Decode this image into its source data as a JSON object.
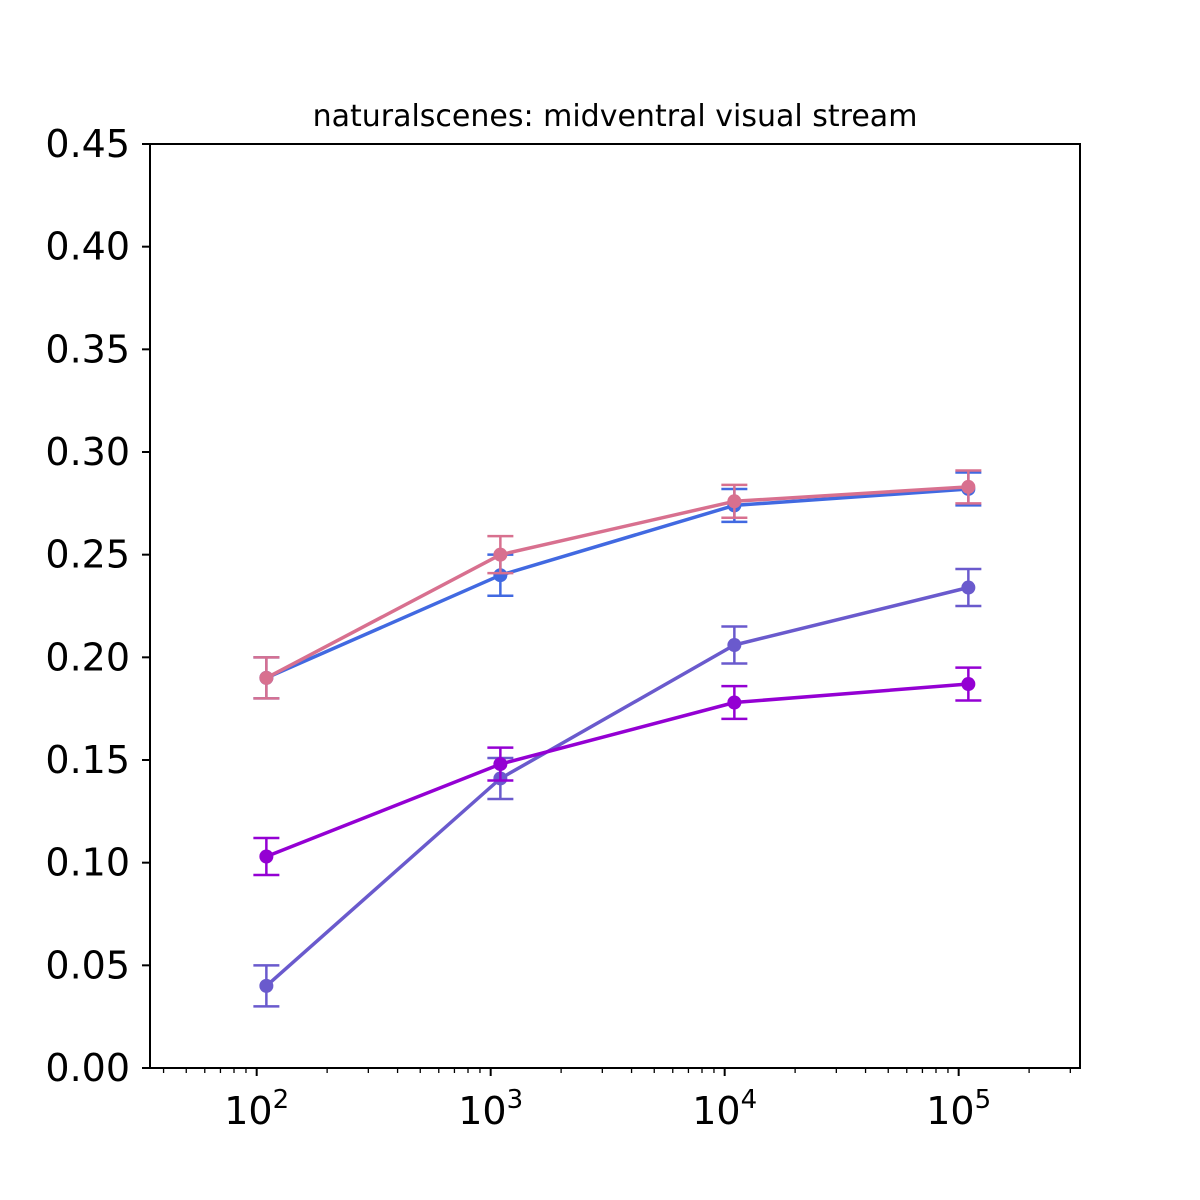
{
  "chart_data": {
    "type": "line",
    "title": "naturalscenes: midventral visual stream",
    "xlabel": "",
    "ylabel": "",
    "xscale": "log",
    "xlim": [
      35,
      330000
    ],
    "ylim": [
      0,
      0.45
    ],
    "grid": false,
    "legend": "none",
    "x_ticks": [
      {
        "value": 100,
        "base": "10",
        "exp": "2"
      },
      {
        "value": 1000,
        "base": "10",
        "exp": "3"
      },
      {
        "value": 10000,
        "base": "10",
        "exp": "4"
      },
      {
        "value": 100000,
        "base": "10",
        "exp": "5"
      }
    ],
    "y_ticks": [
      {
        "value": 0.0,
        "label": "0.00"
      },
      {
        "value": 0.05,
        "label": "0.05"
      },
      {
        "value": 0.1,
        "label": "0.10"
      },
      {
        "value": 0.15,
        "label": "0.15"
      },
      {
        "value": 0.2,
        "label": "0.20"
      },
      {
        "value": 0.25,
        "label": "0.25"
      },
      {
        "value": 0.3,
        "label": "0.30"
      },
      {
        "value": 0.35,
        "label": "0.35"
      },
      {
        "value": 0.4,
        "label": "0.40"
      },
      {
        "value": 0.45,
        "label": "0.45"
      }
    ],
    "x": [
      110,
      1100,
      11000,
      110000
    ],
    "series": [
      {
        "color": "#4169e1",
        "values": [
          0.19,
          0.24,
          0.274,
          0.282
        ],
        "err": [
          0.01,
          0.01,
          0.008,
          0.008
        ]
      },
      {
        "color": "#d8708f",
        "values": [
          0.19,
          0.25,
          0.276,
          0.283
        ],
        "err": [
          0.01,
          0.009,
          0.008,
          0.008
        ]
      },
      {
        "color": "#6a5acd",
        "values": [
          0.04,
          0.141,
          0.206,
          0.234
        ],
        "err": [
          0.01,
          0.01,
          0.009,
          0.009
        ]
      },
      {
        "color": "#9400d3",
        "values": [
          0.103,
          0.148,
          0.178,
          0.187
        ],
        "err": [
          0.009,
          0.008,
          0.008,
          0.008
        ]
      }
    ]
  }
}
